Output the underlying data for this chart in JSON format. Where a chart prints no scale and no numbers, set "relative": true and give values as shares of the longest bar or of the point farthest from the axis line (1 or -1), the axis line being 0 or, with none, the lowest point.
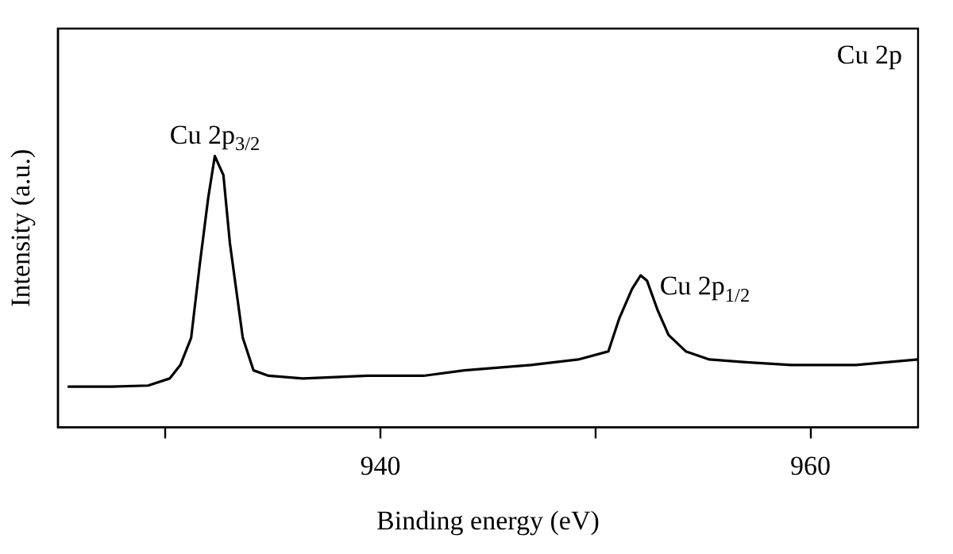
{
  "chart_data": {
    "type": "line",
    "xlabel": "Binding energy (eV)",
    "ylabel": "Intensity (a.u.)",
    "relative": true,
    "xlim": [
      925,
      965
    ],
    "xticks": [
      {
        "value": 930,
        "label": null
      },
      940,
      {
        "value": 950,
        "label": null
      },
      960
    ],
    "grid": false,
    "legend": false,
    "marker": "none",
    "line_style": "solid",
    "series": [
      {
        "color": "#000000",
        "x": [
          925.5,
          927.5,
          929.2,
          930.2,
          930.7,
          931.2,
          931.6,
          932.0,
          932.3,
          932.7,
          933.0,
          933.6,
          934.1,
          934.8,
          936.4,
          939.4,
          942.0,
          943.9,
          947.0,
          949.2,
          950.6,
          951.1,
          951.7,
          952.1,
          952.4,
          952.9,
          953.4,
          954.2,
          955.3,
          957.0,
          959.1,
          962.1,
          965.0
        ],
        "values": [
          0.15,
          0.15,
          0.154,
          0.18,
          0.23,
          0.33,
          0.6,
          0.85,
          1,
          0.93,
          0.68,
          0.33,
          0.21,
          0.19,
          0.18,
          0.19,
          0.19,
          0.21,
          0.23,
          0.25,
          0.28,
          0.4,
          0.51,
          0.56,
          0.54,
          0.43,
          0.34,
          0.28,
          0.25,
          0.24,
          0.23,
          0.23,
          0.25
        ]
      }
    ],
    "annotations": [
      {
        "text": "Cu 2p$_{3/2}$",
        "x": 932.3,
        "y": 1
      },
      {
        "text": "Cu 2p$_{1/2}$",
        "x": 952.1,
        "y": 0.56
      },
      "Cu 2p"
    ]
  }
}
